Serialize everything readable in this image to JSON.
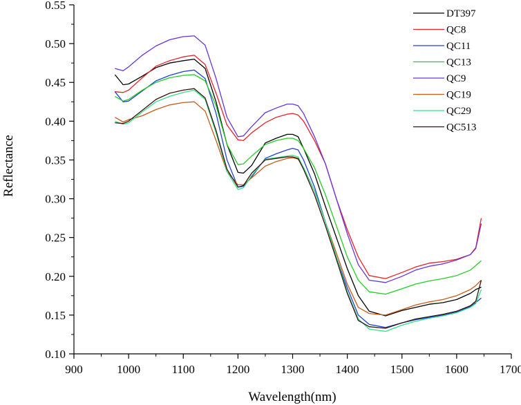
{
  "chart_data": {
    "type": "line",
    "title": "",
    "xlabel": "Wavelength(nm)",
    "ylabel": "Reflectance",
    "xlim": [
      900,
      1700
    ],
    "ylim": [
      0.1,
      0.55
    ],
    "xticks": [
      "900",
      "1000",
      "1100",
      "1200",
      "1300",
      "1400",
      "1500",
      "1600",
      "1700"
    ],
    "yticks": [
      "0.10",
      "0.15",
      "0.20",
      "0.25",
      "0.30",
      "0.35",
      "0.40",
      "0.45",
      "0.50",
      "0.55"
    ],
    "grid": false,
    "legend_position": "top-right",
    "x": [
      975,
      990,
      1000,
      1025,
      1050,
      1075,
      1100,
      1120,
      1140,
      1160,
      1180,
      1200,
      1210,
      1225,
      1250,
      1270,
      1290,
      1300,
      1310,
      1320,
      1340,
      1360,
      1380,
      1400,
      1420,
      1440,
      1470,
      1500,
      1525,
      1550,
      1575,
      1600,
      1625,
      1635,
      1645
    ],
    "series": [
      {
        "name": "DT397",
        "color": "#000000",
        "values": [
          0.46,
          0.447,
          0.448,
          0.458,
          0.469,
          0.475,
          0.478,
          0.48,
          0.468,
          0.425,
          0.37,
          0.334,
          0.333,
          0.343,
          0.372,
          0.378,
          0.383,
          0.383,
          0.38,
          0.365,
          0.332,
          0.29,
          0.25,
          0.21,
          0.175,
          0.155,
          0.149,
          0.156,
          0.16,
          0.164,
          0.166,
          0.17,
          0.178,
          0.183,
          0.186
        ]
      },
      {
        "name": "QC8",
        "color": "#e8202a",
        "values": [
          0.438,
          0.437,
          0.44,
          0.456,
          0.471,
          0.478,
          0.483,
          0.485,
          0.473,
          0.436,
          0.395,
          0.376,
          0.375,
          0.385,
          0.398,
          0.405,
          0.409,
          0.41,
          0.408,
          0.4,
          0.375,
          0.345,
          0.3,
          0.26,
          0.225,
          0.201,
          0.197,
          0.205,
          0.212,
          0.217,
          0.219,
          0.222,
          0.228,
          0.237,
          0.275
        ]
      },
      {
        "name": "QC11",
        "color": "#1f3fd8",
        "values": [
          0.438,
          0.425,
          0.426,
          0.439,
          0.452,
          0.459,
          0.464,
          0.466,
          0.455,
          0.41,
          0.35,
          0.315,
          0.316,
          0.328,
          0.352,
          0.358,
          0.363,
          0.365,
          0.363,
          0.35,
          0.315,
          0.27,
          0.225,
          0.185,
          0.15,
          0.138,
          0.134,
          0.14,
          0.144,
          0.147,
          0.15,
          0.154,
          0.161,
          0.166,
          0.172
        ]
      },
      {
        "name": "QC13",
        "color": "#22cc22",
        "values": [
          0.432,
          0.426,
          0.428,
          0.44,
          0.45,
          0.456,
          0.459,
          0.46,
          0.452,
          0.42,
          0.37,
          0.344,
          0.345,
          0.355,
          0.37,
          0.375,
          0.378,
          0.378,
          0.375,
          0.365,
          0.34,
          0.305,
          0.265,
          0.225,
          0.195,
          0.18,
          0.177,
          0.184,
          0.19,
          0.194,
          0.197,
          0.201,
          0.208,
          0.214,
          0.22
        ]
      },
      {
        "name": "QC9",
        "color": "#6633dd",
        "values": [
          0.468,
          0.465,
          0.47,
          0.485,
          0.497,
          0.505,
          0.509,
          0.51,
          0.498,
          0.455,
          0.405,
          0.38,
          0.381,
          0.393,
          0.411,
          0.417,
          0.422,
          0.422,
          0.42,
          0.41,
          0.38,
          0.345,
          0.3,
          0.255,
          0.215,
          0.195,
          0.192,
          0.2,
          0.208,
          0.213,
          0.216,
          0.221,
          0.228,
          0.236,
          0.268
        ]
      },
      {
        "name": "QC19",
        "color": "#c85a18",
        "values": [
          0.405,
          0.399,
          0.402,
          0.407,
          0.415,
          0.421,
          0.424,
          0.425,
          0.413,
          0.375,
          0.335,
          0.318,
          0.318,
          0.327,
          0.342,
          0.348,
          0.352,
          0.353,
          0.351,
          0.34,
          0.31,
          0.27,
          0.23,
          0.19,
          0.16,
          0.152,
          0.15,
          0.157,
          0.163,
          0.167,
          0.17,
          0.175,
          0.183,
          0.188,
          0.195
        ]
      },
      {
        "name": "QC29",
        "color": "#2ee088",
        "values": [
          0.4,
          0.396,
          0.398,
          0.412,
          0.425,
          0.432,
          0.437,
          0.44,
          0.428,
          0.385,
          0.335,
          0.312,
          0.314,
          0.33,
          0.351,
          0.353,
          0.355,
          0.356,
          0.354,
          0.34,
          0.31,
          0.27,
          0.225,
          0.18,
          0.145,
          0.132,
          0.129,
          0.137,
          0.142,
          0.146,
          0.149,
          0.153,
          0.16,
          0.165,
          0.183
        ]
      },
      {
        "name": "QC513",
        "color": "#3a1010",
        "values": [
          0.398,
          0.397,
          0.4,
          0.414,
          0.428,
          0.436,
          0.44,
          0.442,
          0.43,
          0.388,
          0.338,
          0.315,
          0.317,
          0.333,
          0.35,
          0.352,
          0.354,
          0.354,
          0.352,
          0.338,
          0.305,
          0.265,
          0.222,
          0.178,
          0.143,
          0.135,
          0.133,
          0.14,
          0.145,
          0.148,
          0.151,
          0.155,
          0.162,
          0.168,
          0.195
        ]
      }
    ]
  }
}
